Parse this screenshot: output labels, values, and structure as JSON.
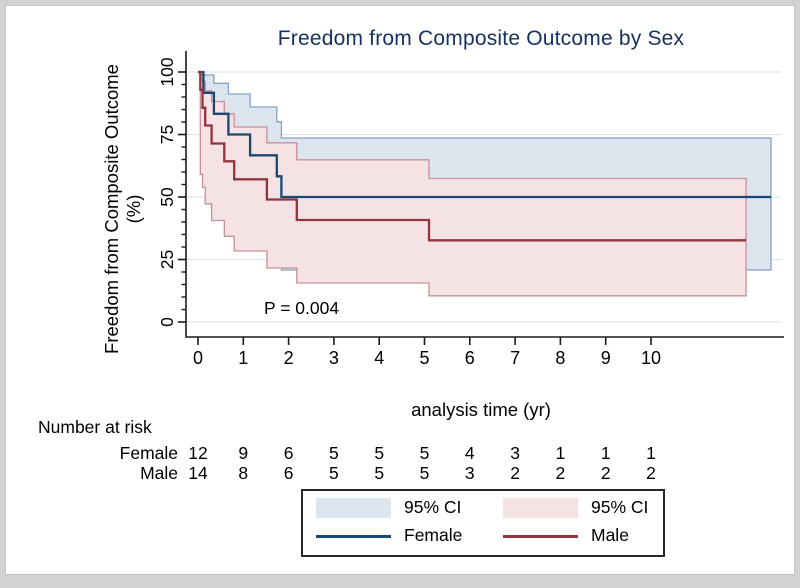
{
  "figure": {
    "background": "#ffffff",
    "frame_color": "#d2d2d2",
    "title_color": "#15315f",
    "axis_color": "#1a1a1a",
    "gridline_color": "#d7e6f0"
  },
  "chart_data": {
    "type": "line",
    "subtype": "kaplan-meier-step",
    "title": "Freedom from Composite Outcome by Sex",
    "xlabel": "analysis time (yr)",
    "ylabel": "Freedom from Composite Outcome (%)",
    "annotation": "P = 0.004",
    "xticks": [
      0,
      1,
      2,
      3,
      4,
      5,
      6,
      7,
      8,
      9,
      10
    ],
    "yticks": [
      0,
      25,
      50,
      75,
      100
    ],
    "y_minor_step": 5,
    "xlim": [
      0,
      12.9
    ],
    "ylim": [
      0,
      100
    ],
    "grid": "on",
    "legend_position": "bottom-center",
    "series": [
      {
        "name": "Female",
        "color": "#1a476f",
        "ci_fill": "#dce4ed",
        "ci_edge": "#85a3c4",
        "tmax": 12.65,
        "steps": [
          [
            0,
            100
          ],
          [
            0.12,
            91.7
          ],
          [
            0.35,
            83.3
          ],
          [
            0.67,
            75.0
          ],
          [
            1.15,
            66.7
          ],
          [
            1.74,
            58.3
          ],
          [
            1.84,
            50.0
          ],
          [
            12.65,
            50.0
          ]
        ],
        "ci_upper": [
          [
            0,
            100
          ],
          [
            0.12,
            98.8
          ],
          [
            0.35,
            95.5
          ],
          [
            0.67,
            91.2
          ],
          [
            1.15,
            86.0
          ],
          [
            1.74,
            80.1
          ],
          [
            1.84,
            73.6
          ],
          [
            12.65,
            73.6
          ]
        ],
        "ci_lower": [
          [
            0,
            100
          ],
          [
            0.12,
            53.9
          ],
          [
            0.35,
            48.2
          ],
          [
            0.67,
            40.8
          ],
          [
            1.15,
            33.7
          ],
          [
            1.74,
            27.0
          ],
          [
            1.84,
            20.8
          ],
          [
            12.65,
            20.8
          ]
        ]
      },
      {
        "name": "Male",
        "color": "#90353b",
        "ci_fill": "#f5e2e5",
        "ci_edge": "#c6909a",
        "tmax": 12.1,
        "steps": [
          [
            0,
            100
          ],
          [
            0.05,
            92.9
          ],
          [
            0.1,
            85.7
          ],
          [
            0.16,
            78.6
          ],
          [
            0.3,
            71.4
          ],
          [
            0.58,
            64.3
          ],
          [
            0.8,
            57.1
          ],
          [
            1.52,
            49.0
          ],
          [
            2.18,
            40.8
          ],
          [
            5.1,
            32.7
          ],
          [
            12.1,
            32.7
          ]
        ],
        "ci_upper": [
          [
            0,
            100
          ],
          [
            0.05,
            99.0
          ],
          [
            0.1,
            96.2
          ],
          [
            0.16,
            92.5
          ],
          [
            0.3,
            88.2
          ],
          [
            0.58,
            83.3
          ],
          [
            0.8,
            78.0
          ],
          [
            1.52,
            71.7
          ],
          [
            2.18,
            64.9
          ],
          [
            5.1,
            57.4
          ],
          [
            12.1,
            57.4
          ]
        ],
        "ci_lower": [
          [
            0,
            100
          ],
          [
            0.05,
            59.1
          ],
          [
            0.1,
            53.9
          ],
          [
            0.16,
            47.3
          ],
          [
            0.3,
            40.6
          ],
          [
            0.58,
            34.3
          ],
          [
            0.8,
            28.4
          ],
          [
            1.52,
            21.6
          ],
          [
            2.18,
            15.6
          ],
          [
            5.1,
            10.5
          ],
          [
            12.1,
            10.5
          ]
        ]
      }
    ]
  },
  "legend": {
    "items": [
      {
        "swatch": "ci-female",
        "label": "95% CI"
      },
      {
        "swatch": "ci-male",
        "label": "95% CI"
      },
      {
        "swatch": "line-female",
        "label": "Female"
      },
      {
        "swatch": "line-male",
        "label": "Male"
      }
    ]
  },
  "risk_table": {
    "title": "Number at risk",
    "rows": [
      {
        "label": "Female",
        "values": [
          "12",
          "9",
          "6",
          "5",
          "5",
          "5",
          "4",
          "3",
          "1",
          "1",
          "1"
        ]
      },
      {
        "label": "Male",
        "values": [
          "14",
          "8",
          "6",
          "5",
          "5",
          "5",
          "3",
          "2",
          "2",
          "2",
          "2"
        ]
      }
    ]
  }
}
